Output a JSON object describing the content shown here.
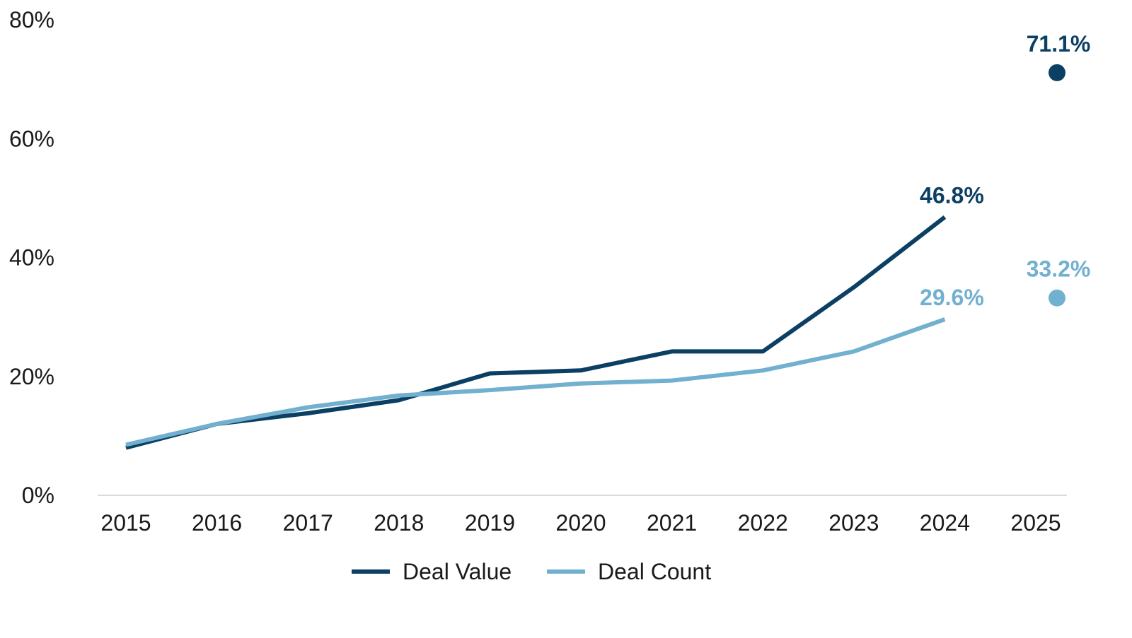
{
  "chart_data": {
    "type": "line",
    "title": "",
    "xlabel": "",
    "ylabel": "",
    "x": [
      "2015",
      "2016",
      "2017",
      "2018",
      "2019",
      "2020",
      "2021",
      "2022",
      "2023",
      "2024",
      "2025"
    ],
    "y_ticks": [
      "0%",
      "20%",
      "40%",
      "60%",
      "80%"
    ],
    "ylim": [
      0,
      80
    ],
    "grid": false,
    "legend_position": "bottom",
    "series": [
      {
        "name": "Deal Value",
        "color": "#0b3f63",
        "values": [
          8.0,
          12.0,
          13.8,
          16.0,
          20.5,
          21.0,
          24.2,
          24.2,
          35.0,
          46.8,
          null
        ],
        "labels": {
          "2024": "46.8%"
        }
      },
      {
        "name": "Deal Count",
        "color": "#72b0cf",
        "values": [
          8.5,
          12.0,
          14.8,
          16.8,
          17.7,
          18.8,
          19.3,
          21.0,
          24.2,
          29.6,
          null
        ],
        "labels": {
          "2024": "29.6%"
        }
      }
    ],
    "points": [
      {
        "series": "Deal Value",
        "x": "2025",
        "y": 71.1,
        "label": "71.1%",
        "color": "#0b3f63"
      },
      {
        "series": "Deal Count",
        "x": "2025",
        "y": 33.2,
        "label": "33.2%",
        "color": "#72b0cf"
      }
    ]
  }
}
